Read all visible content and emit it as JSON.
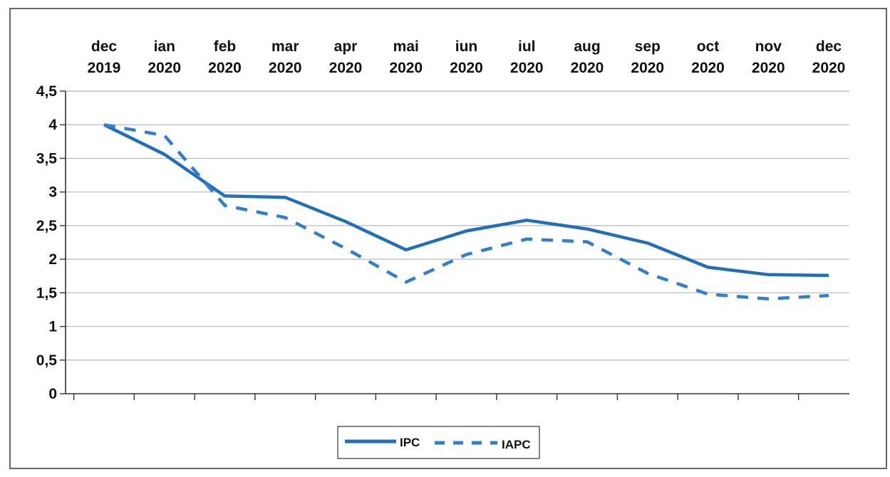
{
  "chart_data": {
    "type": "line",
    "categories": [
      [
        "dec",
        "2019"
      ],
      [
        "ian",
        "2020"
      ],
      [
        "feb",
        "2020"
      ],
      [
        "mar",
        "2020"
      ],
      [
        "apr",
        "2020"
      ],
      [
        "mai",
        "2020"
      ],
      [
        "iun",
        "2020"
      ],
      [
        "iul",
        "2020"
      ],
      [
        "aug",
        "2020"
      ],
      [
        "sep",
        "2020"
      ],
      [
        "oct",
        "2020"
      ],
      [
        "nov",
        "2020"
      ],
      [
        "dec",
        "2020"
      ]
    ],
    "ylim": [
      0,
      4.5
    ],
    "yticks": [
      "0",
      "0,5",
      "1",
      "1,5",
      "2",
      "2,5",
      "3",
      "3,5",
      "4",
      "4,5"
    ],
    "grid": true,
    "legend_position": "bottom",
    "series": [
      {
        "name": "IPC",
        "style": "solid",
        "color": "#1f6fc1",
        "values": [
          4.0,
          3.56,
          2.94,
          2.92,
          2.56,
          2.14,
          2.42,
          2.58,
          2.45,
          2.24,
          1.88,
          1.77,
          1.76
        ]
      },
      {
        "name": "IAPC",
        "style": "dashed",
        "color": "#2e7fd4",
        "values": [
          4.0,
          3.84,
          2.8,
          2.62,
          2.16,
          1.66,
          2.07,
          2.3,
          2.26,
          1.79,
          1.48,
          1.41,
          1.46
        ]
      }
    ]
  }
}
